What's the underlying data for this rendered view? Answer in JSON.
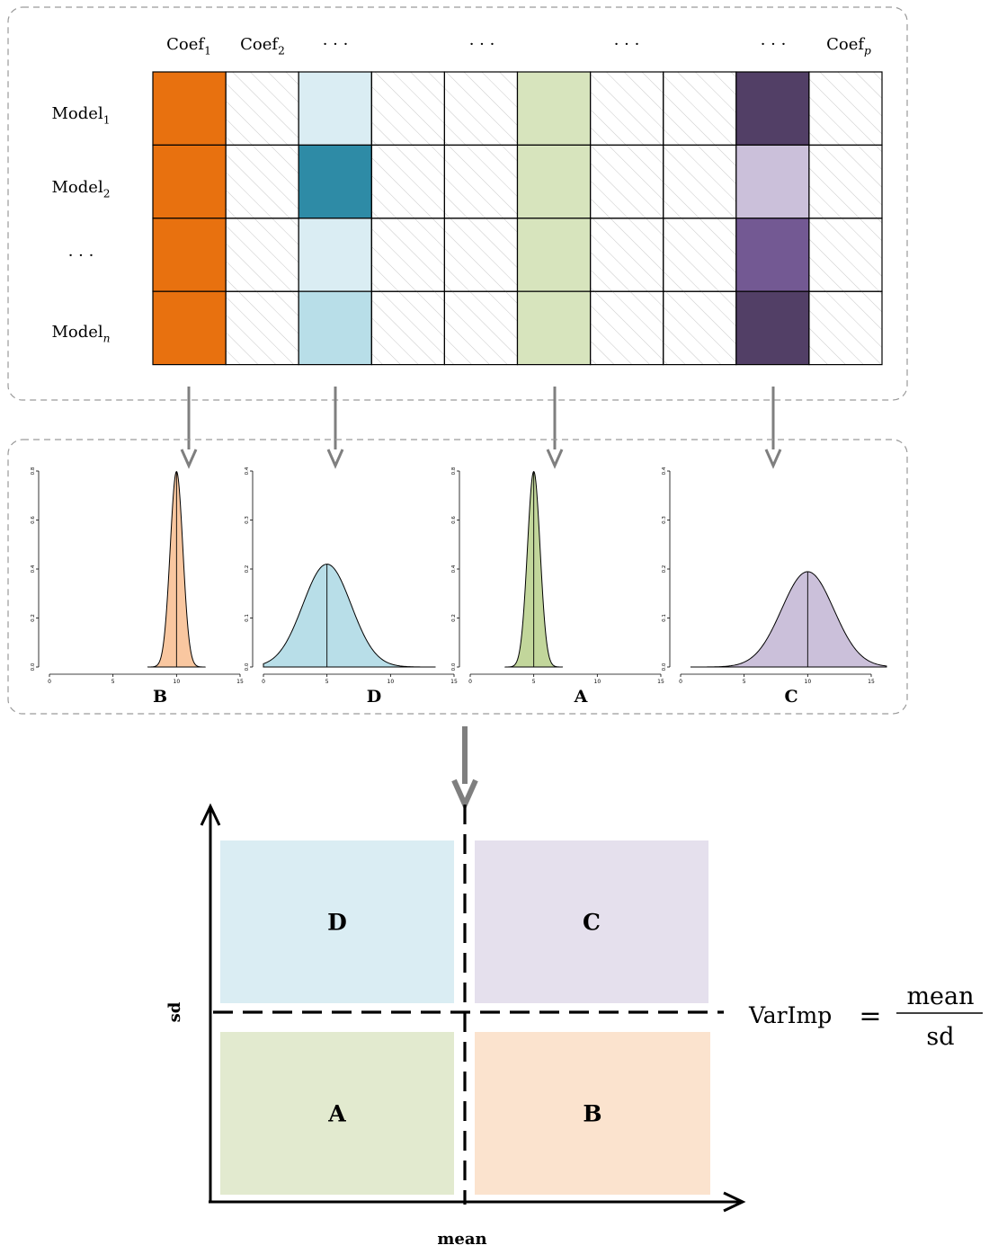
{
  "matrix": {
    "column_headers": [
      {
        "base": "Coef",
        "sub": "1"
      },
      {
        "base": "Coef",
        "sub": "2"
      },
      {
        "base": "· · ·",
        "sub": ""
      },
      {
        "base": "· · ·",
        "sub": ""
      },
      {
        "base": "· · ·",
        "sub": ""
      },
      {
        "base": "· · ·",
        "sub": ""
      },
      {
        "base": "Coef",
        "sub": "p"
      }
    ],
    "row_labels": [
      {
        "base": "Model",
        "sub": "1"
      },
      {
        "base": "Model",
        "sub": "2"
      },
      {
        "base": "· · ·",
        "sub": ""
      },
      {
        "base": "Model",
        "sub": "n"
      }
    ],
    "columns": 10,
    "cell_colors": [
      [
        "#e8710f",
        "hatch",
        "#daedf3",
        "hatch",
        "hatch",
        "#d7e4bd",
        "hatch",
        "hatch",
        "#523f66",
        "hatch"
      ],
      [
        "#e8710f",
        "hatch",
        "#2e8ba6",
        "hatch",
        "hatch",
        "#d7e4bd",
        "hatch",
        "hatch",
        "#cbc0da",
        "hatch"
      ],
      [
        "#e8710f",
        "hatch",
        "#daedf3",
        "hatch",
        "hatch",
        "#d7e4bd",
        "hatch",
        "hatch",
        "#735993",
        "hatch"
      ],
      [
        "#e8710f",
        "hatch",
        "#b8dee8",
        "hatch",
        "hatch",
        "#d7e4bd",
        "hatch",
        "hatch",
        "#523f66",
        "hatch"
      ]
    ]
  },
  "distributions": [
    {
      "label": "B",
      "mean": 10,
      "sd": 0.5,
      "fill": "#f9c7a0",
      "xlim": [
        0,
        15
      ],
      "ylim": [
        0,
        0.8
      ],
      "yticks": [
        "0.0",
        "0.2",
        "0.4",
        "0.6",
        "0.8"
      ],
      "xticks": [
        "0",
        "5",
        "10",
        "15"
      ]
    },
    {
      "label": "D",
      "mean": 5,
      "sd": 1.9,
      "fill": "#b8dee8",
      "xlim": [
        0,
        15
      ],
      "ylim": [
        0,
        0.4
      ],
      "yticks": [
        "0.0",
        "0.1",
        "0.2",
        "0.3",
        "0.4"
      ],
      "xticks": [
        "0",
        "5",
        "10",
        "15"
      ]
    },
    {
      "label": "A",
      "mean": 5,
      "sd": 0.5,
      "fill": "#c2d69b",
      "xlim": [
        0,
        15
      ],
      "ylim": [
        0,
        0.8
      ],
      "yticks": [
        "0.0",
        "0.2",
        "0.4",
        "0.6",
        "0.8"
      ],
      "xticks": [
        "0",
        "5",
        "10",
        "15"
      ]
    },
    {
      "label": "C",
      "mean": 10,
      "sd": 2.05,
      "fill": "#cbc0da",
      "xlim": [
        0,
        15
      ],
      "ylim": [
        0,
        0.4
      ],
      "yticks": [
        "0.0",
        "0.1",
        "0.2",
        "0.3",
        "0.4"
      ],
      "xticks": [
        "0",
        "5",
        "10",
        "15"
      ]
    }
  ],
  "quadrants": [
    {
      "label": "D",
      "fill": "#daedf3"
    },
    {
      "label": "C",
      "fill": "#e5e0ed"
    },
    {
      "label": "A",
      "fill": "#e2eacf"
    },
    {
      "label": "B",
      "fill": "#fbe3ce"
    }
  ],
  "axes": {
    "x_label": "mean",
    "y_label": "sd"
  },
  "formula": {
    "lhs": "VarImp",
    "op": "=",
    "numerator": "mean",
    "denominator": "sd"
  },
  "colors": {
    "arrow": "#7f7f7f",
    "panel_border": "#9a9a9a",
    "hatch": "#c8c8c8"
  }
}
